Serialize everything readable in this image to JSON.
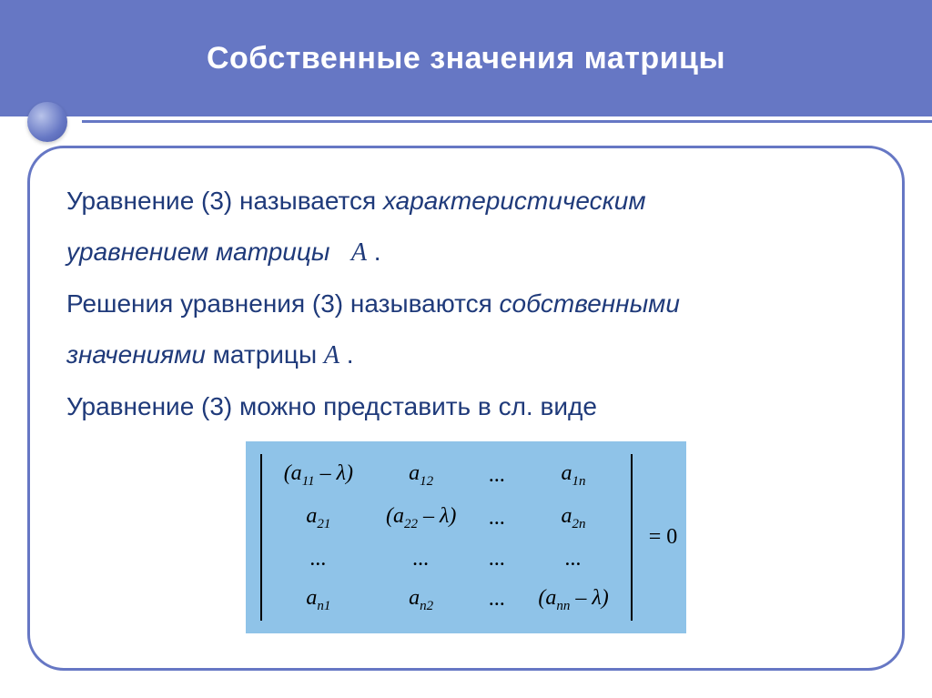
{
  "colors": {
    "header_bg": "#6677c4",
    "text": "#1f3a7a",
    "matrix_bg": "#8fc3e8",
    "white": "#ffffff",
    "black": "#000000"
  },
  "typography": {
    "title_size": 34,
    "body_size": 28,
    "matrix_cell_size": 24,
    "sub_size": 15,
    "title_weight": "bold"
  },
  "title": "Собственные значения   матрицы",
  "para1_a": "Уравнение (3) называется ",
  "para1_b": "характеристическим",
  "para2_a": " уравнением матрицы",
  "para2_A": "A",
  "para2_dot": " .",
  "para3_a": "Решения уравнения (3) называются ",
  "para3_b": "собственными",
  "para4_a": "значениями",
  "para4_b": " матрицы   ",
  "para4_A": "A",
  "para4_dot": " .",
  "para5": "Уравнение (3) можно представить в сл. виде",
  "matrix": {
    "type": "determinant",
    "rows": [
      [
        "(a₁₁ – λ)",
        "a₁₂",
        "...",
        "a₁ₙ"
      ],
      [
        "a₂₁",
        "(a₂₂ – λ)",
        "...",
        "a₂ₙ"
      ],
      [
        "...",
        "...",
        "...",
        "..."
      ],
      [
        "aₙ₁",
        "aₙ₂",
        "...",
        "(aₙₙ – λ)"
      ]
    ],
    "cells": {
      "r0c0_a": "(a",
      "r0c0_s": "11",
      "r0c0_b": " – λ)",
      "r0c1_a": "a",
      "r0c1_s": "12",
      "r0c2": "...",
      "r0c3_a": "a",
      "r0c3_s": "1n",
      "r1c0_a": "a",
      "r1c0_s": "21",
      "r1c1_a": "(a",
      "r1c1_s": "22",
      "r1c1_b": " – λ)",
      "r1c2": "...",
      "r1c3_a": "a",
      "r1c3_s": "2n",
      "r2c0": "...",
      "r2c1": "...",
      "r2c2": "...",
      "r2c3": "...",
      "r3c0_a": "a",
      "r3c0_s": "n1",
      "r3c1_a": "a",
      "r3c1_s": "n2",
      "r3c2": "...",
      "r3c3_a": "(a",
      "r3c3_s": "nn",
      "r3c3_b": " – λ)"
    },
    "equals": " = 0"
  }
}
